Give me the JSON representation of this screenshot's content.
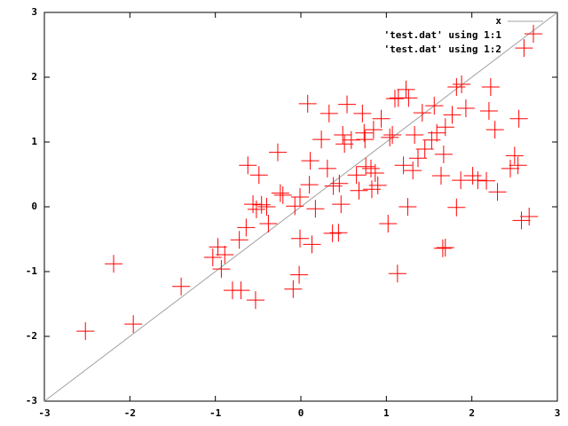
{
  "chart_data": {
    "type": "scatter",
    "xlim": [
      -3,
      3
    ],
    "ylim": [
      -3,
      3
    ],
    "xticks": [
      -3,
      -2,
      -1,
      0,
      1,
      2,
      3
    ],
    "yticks": [
      -3,
      -2,
      -1,
      0,
      1,
      2,
      3
    ],
    "series": [
      {
        "name": "x",
        "color": "#a0a0a0",
        "mode": "line",
        "x": [
          -3,
          3
        ],
        "values": [
          -3,
          3
        ]
      },
      {
        "name": "'test.dat' using 1:1",
        "color": "#00c000",
        "mode": "points",
        "x": [],
        "values": []
      },
      {
        "name": "'test.dat' using 1:2",
        "color": "#ff0000",
        "mode": "points",
        "x": [
          -2.52,
          -2.19,
          -1.96,
          -1.4,
          -1.03,
          -0.97,
          -0.93,
          -0.89,
          -0.8,
          -0.7,
          -0.53,
          -0.72,
          -0.64,
          -0.62,
          -0.56,
          -0.52,
          -0.49,
          -0.46,
          -0.38,
          -0.4,
          -0.27,
          -0.24,
          -0.21,
          -0.09,
          -0.02,
          -0.01,
          -0.01,
          -0.07,
          0.08,
          0.1,
          0.11,
          0.13,
          0.17,
          0.24,
          0.31,
          0.33,
          0.37,
          0.38,
          0.44,
          0.45,
          0.47,
          0.49,
          0.51,
          0.54,
          0.59,
          0.65,
          0.68,
          0.74,
          0.75,
          0.82,
          0.83,
          0.85,
          0.87,
          0.9,
          0.94,
          1.02,
          1.04,
          1.07,
          1.1,
          1.13,
          1.14,
          1.2,
          1.23,
          1.25,
          1.26,
          1.31,
          1.33,
          1.37,
          1.42,
          1.45,
          1.53,
          1.56,
          1.59,
          1.64,
          1.66,
          1.67,
          1.69,
          1.77,
          1.82,
          1.82,
          1.87,
          1.88,
          2.01,
          2.07,
          2.17,
          2.22,
          2.2,
          2.27,
          2.3,
          2.45,
          2.5,
          2.54,
          2.55,
          2.58,
          2.61,
          2.67,
          2.72,
          0.72,
          1.93,
          0.76,
          1.69
        ],
        "values": [
          -1.92,
          -0.88,
          -1.81,
          -1.23,
          -0.78,
          -0.62,
          -0.96,
          -0.74,
          -1.29,
          -1.29,
          -1.44,
          -0.51,
          -0.32,
          0.64,
          0.04,
          -0.04,
          0.49,
          0.03,
          -0.26,
          0,
          0.84,
          0.21,
          0.18,
          -1.27,
          -1.05,
          -0.49,
          0.15,
          0.01,
          1.59,
          0.34,
          0.71,
          -0.58,
          -0.03,
          1.04,
          0.59,
          1.44,
          -0.41,
          0.32,
          -0.4,
          0.36,
          0.04,
          1.11,
          0.97,
          1.58,
          1.03,
          0.49,
          0.25,
          1.14,
          1.04,
          0.59,
          0.27,
          1.19,
          0.52,
          0.33,
          1.36,
          -0.26,
          1.07,
          1.11,
          1.67,
          -1.03,
          1.68,
          0.64,
          1.81,
          0,
          1.68,
          0.56,
          1.11,
          0.75,
          1.45,
          0.89,
          1.03,
          1.56,
          1.14,
          0.48,
          -0.64,
          0.81,
          1.23,
          1.42,
          -0.01,
          1.85,
          0.41,
          1.89,
          0.48,
          0.41,
          0.4,
          1.85,
          1.48,
          1.19,
          0.23,
          0.59,
          0.79,
          0.64,
          1.36,
          -0.21,
          2.45,
          -0.15,
          2.67,
          1.44,
          1.52,
          0.62,
          -0.63
        ]
      }
    ]
  }
}
